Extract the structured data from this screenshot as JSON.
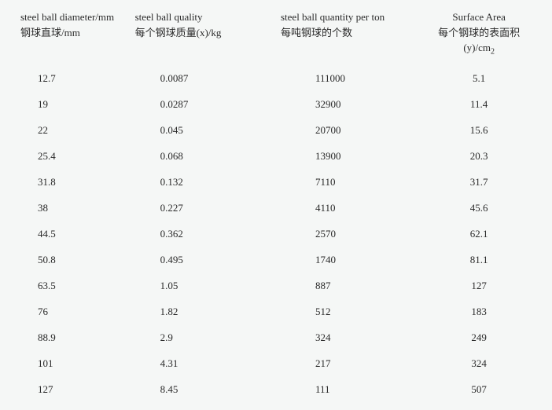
{
  "table": {
    "headers": [
      {
        "en": "steel ball diameter/mm",
        "cn": "钢球直球/mm"
      },
      {
        "en": "steel ball quality",
        "cn": "每个钢球质量(x)/kg"
      },
      {
        "en": "steel ball quantity per ton",
        "cn": "每吨钢球的个数"
      },
      {
        "en": "Surface Area",
        "cn": "每个钢球的表面积(y)/cm",
        "sub": "2"
      }
    ],
    "rows": [
      [
        "12.7",
        "0.0087",
        "111000",
        "5.1"
      ],
      [
        "19",
        "0.0287",
        "32900",
        "11.4"
      ],
      [
        "22",
        "0.045",
        "20700",
        "15.6"
      ],
      [
        "25.4",
        "0.068",
        "13900",
        "20.3"
      ],
      [
        "31.8",
        "0.132",
        "7110",
        "31.7"
      ],
      [
        "38",
        "0.227",
        "4110",
        "45.6"
      ],
      [
        "44.5",
        "0.362",
        "2570",
        "62.1"
      ],
      [
        "50.8",
        "0.495",
        "1740",
        "81.1"
      ],
      [
        "63.5",
        "1.05",
        "887",
        "127"
      ],
      [
        "76",
        "1.82",
        "512",
        "183"
      ],
      [
        "88.9",
        "2.9",
        "324",
        "249"
      ],
      [
        "101",
        "4.31",
        "217",
        "324"
      ],
      [
        "127",
        "8.45",
        "111",
        "507"
      ]
    ],
    "styling": {
      "background_color": "#f5f7f6",
      "text_color": "#2a2a2a",
      "font_family": "SimSun",
      "font_size": 13,
      "column_widths_pct": [
        22,
        28,
        28,
        22
      ],
      "row_padding_v": 8.5
    }
  }
}
